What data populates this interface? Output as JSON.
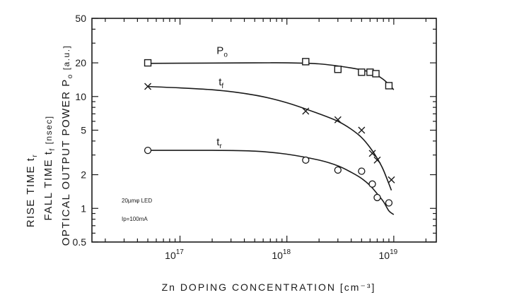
{
  "chart_data": {
    "type": "scatter",
    "xlabel": "Zn DOPING CONCENTRATION",
    "xlabel_unit": "[cm⁻³]",
    "ylabel_lines": [
      {
        "text": "RISE TIME",
        "sym": "t",
        "sub": "r"
      },
      {
        "text": "FALL TIME",
        "sym": "t",
        "sub": "f",
        "unit": "[nsec]"
      },
      {
        "text": "OPTICAL OUTPUT POWER",
        "sym": "P",
        "sub": "o",
        "unit": "[a.u.]"
      }
    ],
    "xscale": "log",
    "yscale": "log",
    "xlim": [
      1.5e+16,
      2.5e+19
    ],
    "ylim": [
      0.5,
      50
    ],
    "xtick_labels": [
      {
        "value": 1e+17,
        "base": "10",
        "exp": "17"
      },
      {
        "value": 1e+18,
        "base": "10",
        "exp": "18"
      },
      {
        "value": 1e+19,
        "base": "10",
        "exp": "19"
      }
    ],
    "ytick_labels": [
      {
        "value": 50,
        "label": "50"
      },
      {
        "value": 20,
        "label": "20"
      },
      {
        "value": 10,
        "label": "10"
      },
      {
        "value": 5,
        "label": "5"
      },
      {
        "value": 2,
        "label": "2"
      },
      {
        "value": 1,
        "label": "1"
      },
      {
        "value": 0.5,
        "label": "0.5"
      }
    ],
    "grid": false,
    "series": [
      {
        "name": "Po",
        "label_base": "P",
        "label_sub": "o",
        "marker": "square",
        "points": [
          [
            5e+16,
            20
          ],
          [
            1.5e+18,
            20.5
          ],
          [
            3e+18,
            17.5
          ],
          [
            5e+18,
            16.5
          ],
          [
            6e+18,
            16.5
          ],
          [
            6.8e+18,
            16
          ],
          [
            9e+18,
            12.5
          ]
        ],
        "fit": [
          [
            5e+16,
            19.8
          ],
          [
            5e+17,
            20
          ],
          [
            1e+18,
            20
          ],
          [
            2e+18,
            19.6
          ],
          [
            4e+18,
            18
          ],
          [
            6e+18,
            16.5
          ],
          [
            8e+18,
            14.2
          ],
          [
            1e+19,
            11.5
          ]
        ],
        "label_at": [
          2.2e+17,
          24
        ]
      },
      {
        "name": "tf",
        "label_base": "t",
        "label_sub": "f",
        "marker": "x",
        "points": [
          [
            5e+16,
            12.3
          ],
          [
            1.5e+18,
            7.4
          ],
          [
            3e+18,
            6.2
          ],
          [
            5e+18,
            5
          ],
          [
            6.3e+18,
            3.1
          ],
          [
            7e+18,
            2.7
          ],
          [
            9.5e+18,
            1.8
          ]
        ],
        "fit": [
          [
            5e+16,
            12.3
          ],
          [
            2e+17,
            11.5
          ],
          [
            5e+17,
            10.3
          ],
          [
            1e+18,
            8.8
          ],
          [
            2e+18,
            7
          ],
          [
            3e+18,
            6
          ],
          [
            4e+18,
            5.1
          ],
          [
            5e+18,
            4.3
          ],
          [
            6e+18,
            3.5
          ],
          [
            7e+18,
            2.8
          ],
          [
            8e+18,
            2.2
          ],
          [
            9.5e+18,
            1.45
          ]
        ],
        "label_at": [
          2.3e+17,
          12.6
        ]
      },
      {
        "name": "tr",
        "label_base": "t",
        "label_sub": "r",
        "marker": "circle",
        "points": [
          [
            5e+16,
            3.3
          ],
          [
            1.5e+18,
            2.7
          ],
          [
            3e+18,
            2.2
          ],
          [
            5e+18,
            2.15
          ],
          [
            6.3e+18,
            1.65
          ],
          [
            7e+18,
            1.25
          ],
          [
            9e+18,
            1.12
          ]
        ],
        "fit": [
          [
            5e+16,
            3.3
          ],
          [
            2e+17,
            3.3
          ],
          [
            5e+17,
            3.25
          ],
          [
            1e+18,
            3.05
          ],
          [
            2e+18,
            2.7
          ],
          [
            3e+18,
            2.4
          ],
          [
            4e+18,
            2.1
          ],
          [
            5e+18,
            1.85
          ],
          [
            6e+18,
            1.6
          ],
          [
            7e+18,
            1.35
          ],
          [
            8e+18,
            1.15
          ],
          [
            9e+18,
            0.95
          ],
          [
            1e+19,
            0.88
          ]
        ],
        "label_at": [
          2.2e+17,
          3.65
        ]
      }
    ],
    "annotations": {
      "device": "20µmφ LED",
      "current": "Ip=100mA"
    }
  }
}
